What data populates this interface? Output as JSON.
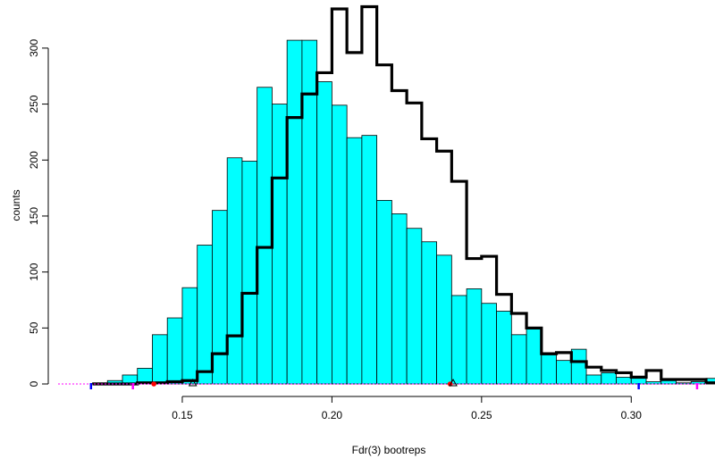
{
  "chart_data": {
    "type": "histogram",
    "title": "",
    "xlabel": "Fdr(3) bootreps",
    "ylabel": "counts",
    "xlim": [
      0.11,
      0.325
    ],
    "ylim": [
      0,
      335
    ],
    "xticks": [
      0.15,
      0.2,
      0.25,
      0.3
    ],
    "xtick_labels": [
      "0.15",
      "0.20",
      "0.25",
      "0.30"
    ],
    "yticks": [
      0,
      50,
      100,
      150,
      200,
      250,
      300
    ],
    "ytick_labels": [
      "0",
      "50",
      "100",
      "150",
      "200",
      "250",
      "300"
    ],
    "grid": false,
    "legend": "none",
    "bin_width": 0.005,
    "series": [
      {
        "style": "filled-bars",
        "color": "#00FFFF",
        "bin_start": 0.12,
        "counts": [
          1,
          3,
          8,
          14,
          44,
          59,
          86,
          124,
          155,
          202,
          199,
          265,
          250,
          307,
          307,
          270,
          249,
          220,
          222,
          164,
          152,
          139,
          127,
          115,
          79,
          85,
          72,
          65,
          44,
          49,
          26,
          21,
          31,
          8,
          10,
          6,
          7,
          2,
          3,
          1,
          2,
          5,
          1,
          1,
          0,
          0,
          1,
          0,
          0,
          0,
          0
        ]
      },
      {
        "style": "step-outline",
        "color": "#000000",
        "bin_start": 0.12,
        "counts": [
          0,
          0,
          0,
          1,
          1,
          2,
          3,
          11,
          27,
          43,
          81,
          122,
          184,
          238,
          259,
          278,
          335,
          296,
          337,
          285,
          262,
          251,
          219,
          208,
          181,
          112,
          114,
          80,
          63,
          50,
          27,
          28,
          20,
          15,
          12,
          10,
          6,
          12,
          4,
          4,
          4,
          1,
          1,
          2,
          1,
          0,
          0,
          0,
          1,
          0,
          1
        ]
      }
    ],
    "annotations": {
      "baseline_line_color": "#FF00FF",
      "rug_marks": [
        {
          "x": 0.1195,
          "color": "#0000FF"
        },
        {
          "x": 0.1335,
          "color": "#FF00FF"
        },
        {
          "x": 0.3025,
          "color": "#0000FF"
        },
        {
          "x": 0.322,
          "color": "#FF00FF"
        }
      ],
      "red_points": [
        0.1405,
        0.2395
      ],
      "triangle_markers": [
        0.1535,
        0.2405
      ]
    }
  }
}
